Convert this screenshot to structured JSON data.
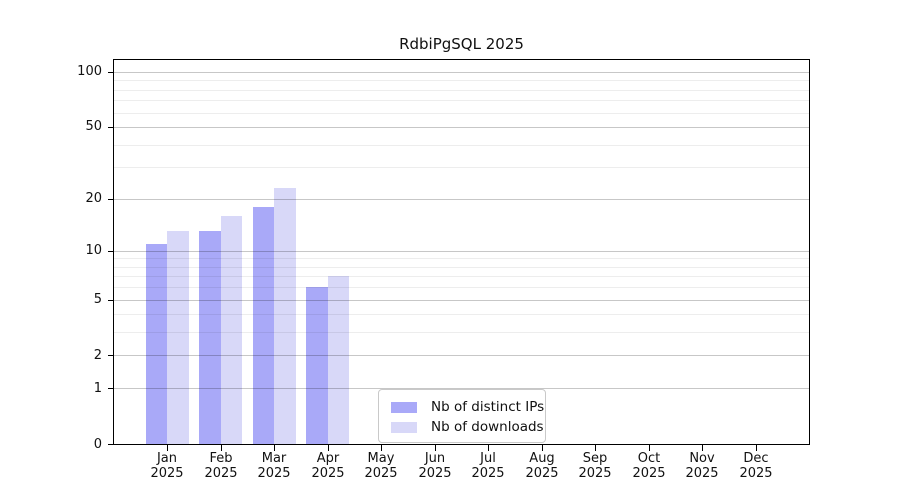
{
  "chart_data": {
    "type": "bar",
    "title": "RdbiPgSQL 2025",
    "year_label": "2025",
    "categories": [
      "Jan",
      "Feb",
      "Mar",
      "Apr",
      "May",
      "Jun",
      "Jul",
      "Aug",
      "Sep",
      "Oct",
      "Nov",
      "Dec"
    ],
    "series": [
      {
        "name": "Nb of distinct IPs",
        "color": "#a9a9f8",
        "values": [
          11,
          13,
          18,
          6,
          0,
          0,
          0,
          0,
          0,
          0,
          0,
          0
        ]
      },
      {
        "name": "Nb of downloads",
        "color": "#d8d8f8",
        "values": [
          13,
          16,
          23,
          7,
          0,
          0,
          0,
          0,
          0,
          0,
          0,
          0
        ]
      }
    ],
    "yscale": "log1p",
    "ylim": [
      0,
      116
    ],
    "y_major_ticks": [
      0,
      1,
      2,
      5,
      10,
      20,
      50,
      100
    ],
    "y_minor_gridlines": [
      3,
      4,
      6,
      7,
      8,
      9,
      30,
      40,
      60,
      70,
      80,
      90
    ],
    "grid": "horizontal",
    "legend_position": "lower center",
    "colors": {
      "distinct_ips_bar": "#a9a9f8",
      "downloads_bar": "#d8d8f8",
      "major_grid": "#c7c7c7",
      "minor_grid": "#ededed",
      "spine": "#000000",
      "text": "#111111",
      "legend_border": "#c9c9c9"
    }
  }
}
